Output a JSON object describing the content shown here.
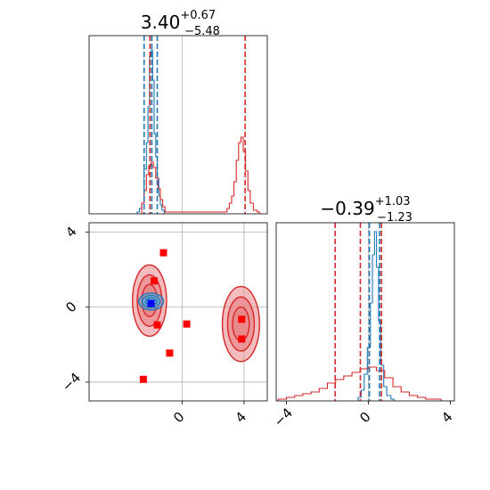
{
  "chart_data": [
    {
      "type": "histogram",
      "panel": "marginal-parameter-1",
      "title": {
        "base": "3.40",
        "sup": "+0.67",
        "sub": "−5.48"
      },
      "xlim": [
        -6,
        5.5
      ],
      "grid": true,
      "series": [
        {
          "color": "#1f77b4",
          "bins": [
            [
              -2.9,
              0.01
            ],
            [
              -2.75,
              0.03
            ],
            [
              -2.6,
              0.06
            ],
            [
              -2.45,
              0.25
            ],
            [
              -2.3,
              0.4
            ],
            [
              -2.2,
              0.6
            ],
            [
              -2.1,
              0.88
            ],
            [
              -2.0,
              0.92
            ],
            [
              -1.9,
              0.75
            ],
            [
              -1.8,
              0.45
            ],
            [
              -1.7,
              0.32
            ],
            [
              -1.6,
              0.2
            ],
            [
              -1.5,
              0.1
            ],
            [
              -1.4,
              0.05
            ],
            [
              -1.3,
              0.02
            ]
          ],
          "markers": [
            -2.45,
            -1.95,
            -1.6
          ]
        },
        {
          "color": "#d62728",
          "bins": [
            [
              -2.6,
              0.06
            ],
            [
              -2.45,
              0.13
            ],
            [
              -2.3,
              0.22
            ],
            [
              -2.15,
              0.27
            ],
            [
              -2.0,
              0.29
            ],
            [
              -1.85,
              0.26
            ],
            [
              -1.7,
              0.2
            ],
            [
              -1.55,
              0.14
            ],
            [
              -1.4,
              0.08
            ],
            [
              -1.25,
              0.04
            ],
            [
              -1.1,
              0.01
            ],
            [
              -0.9,
              0.01
            ],
            [
              -0.5,
              0.01
            ],
            [
              2.7,
              0.01
            ],
            [
              2.9,
              0.03
            ],
            [
              3.05,
              0.06
            ],
            [
              3.2,
              0.1
            ],
            [
              3.35,
              0.18
            ],
            [
              3.5,
              0.3
            ],
            [
              3.65,
              0.4
            ],
            [
              3.8,
              0.43
            ],
            [
              3.95,
              0.35
            ],
            [
              4.1,
              0.24
            ],
            [
              4.25,
              0.13
            ],
            [
              4.4,
              0.06
            ],
            [
              4.6,
              0.02
            ],
            [
              4.85,
              0.01
            ]
          ],
          "markers": [
            -2.07,
            4.07
          ]
        }
      ]
    },
    {
      "type": "contour",
      "panel": "joint-parameters-1-2",
      "xlim": [
        -6,
        5.5
      ],
      "ylim": [
        -5,
        4.5
      ],
      "xticks": [
        "0",
        "4"
      ],
      "yticks": [
        "4",
        "0",
        "−4"
      ],
      "grid": true,
      "series": [
        {
          "color": "#d62728",
          "fill": "#e9878a",
          "regions": [
            {
              "cx": -2.1,
              "cy": 0.35,
              "rx": 1.1,
              "ry": 1.9
            },
            {
              "cx": 3.8,
              "cy": -0.9,
              "rx": 1.2,
              "ry": 2.0
            }
          ]
        },
        {
          "color": "#1f77b4",
          "fill": "#6aa9d8",
          "regions": [
            {
              "cx": -2.0,
              "cy": 0.3,
              "rx": 0.8,
              "ry": 0.45
            }
          ]
        }
      ],
      "points": [
        {
          "x": -1.2,
          "y": 2.9,
          "color": "#ff0000"
        },
        {
          "x": -1.8,
          "y": 1.4,
          "color": "#ff0000"
        },
        {
          "x": -2.0,
          "y": 0.2,
          "color": "#0000ff"
        },
        {
          "x": -1.6,
          "y": -0.95,
          "color": "#ff0000"
        },
        {
          "x": 0.3,
          "y": -0.9,
          "color": "#ff0000"
        },
        {
          "x": -0.8,
          "y": -2.45,
          "color": "#ff0000"
        },
        {
          "x": -2.5,
          "y": -3.85,
          "color": "#ff0000"
        },
        {
          "x": 3.85,
          "y": -0.65,
          "color": "#ff0000"
        },
        {
          "x": 3.85,
          "y": -1.7,
          "color": "#ff0000"
        }
      ]
    },
    {
      "type": "histogram",
      "panel": "marginal-parameter-2",
      "title": {
        "base": "−0.39",
        "sup": "+1.03",
        "sub": "−1.23"
      },
      "xlim": [
        -4.5,
        4.2
      ],
      "xticks": [
        "−4",
        "0",
        "4"
      ],
      "grid": true,
      "series": [
        {
          "color": "#1f77b4",
          "bins": [
            [
              -0.5,
              0.02
            ],
            [
              -0.35,
              0.06
            ],
            [
              -0.2,
              0.15
            ],
            [
              -0.05,
              0.3
            ],
            [
              0.1,
              0.55
            ],
            [
              0.2,
              0.82
            ],
            [
              0.3,
              0.95
            ],
            [
              0.4,
              0.75
            ],
            [
              0.5,
              0.45
            ],
            [
              0.6,
              0.2
            ],
            [
              0.75,
              0.08
            ],
            [
              0.9,
              0.03
            ],
            [
              1.1,
              0.01
            ]
          ],
          "markers": [
            0.05,
            0.55
          ]
        },
        {
          "color": "#d62728",
          "bins": [
            [
              -4.4,
              0.01
            ],
            [
              -4.0,
              0.02
            ],
            [
              -3.6,
              0.03
            ],
            [
              -3.2,
              0.04
            ],
            [
              -2.8,
              0.05
            ],
            [
              -2.4,
              0.07
            ],
            [
              -2.0,
              0.1
            ],
            [
              -1.6,
              0.12
            ],
            [
              -1.2,
              0.14
            ],
            [
              -0.8,
              0.16
            ],
            [
              -0.4,
              0.18
            ],
            [
              0.0,
              0.19
            ],
            [
              0.4,
              0.17
            ],
            [
              0.8,
              0.13
            ],
            [
              1.2,
              0.08
            ],
            [
              1.6,
              0.05
            ],
            [
              2.0,
              0.03
            ],
            [
              2.4,
              0.02
            ],
            [
              2.8,
              0.01
            ],
            [
              3.4,
              0.01
            ]
          ],
          "markers": [
            -1.62,
            -0.39,
            0.64
          ]
        }
      ]
    }
  ]
}
